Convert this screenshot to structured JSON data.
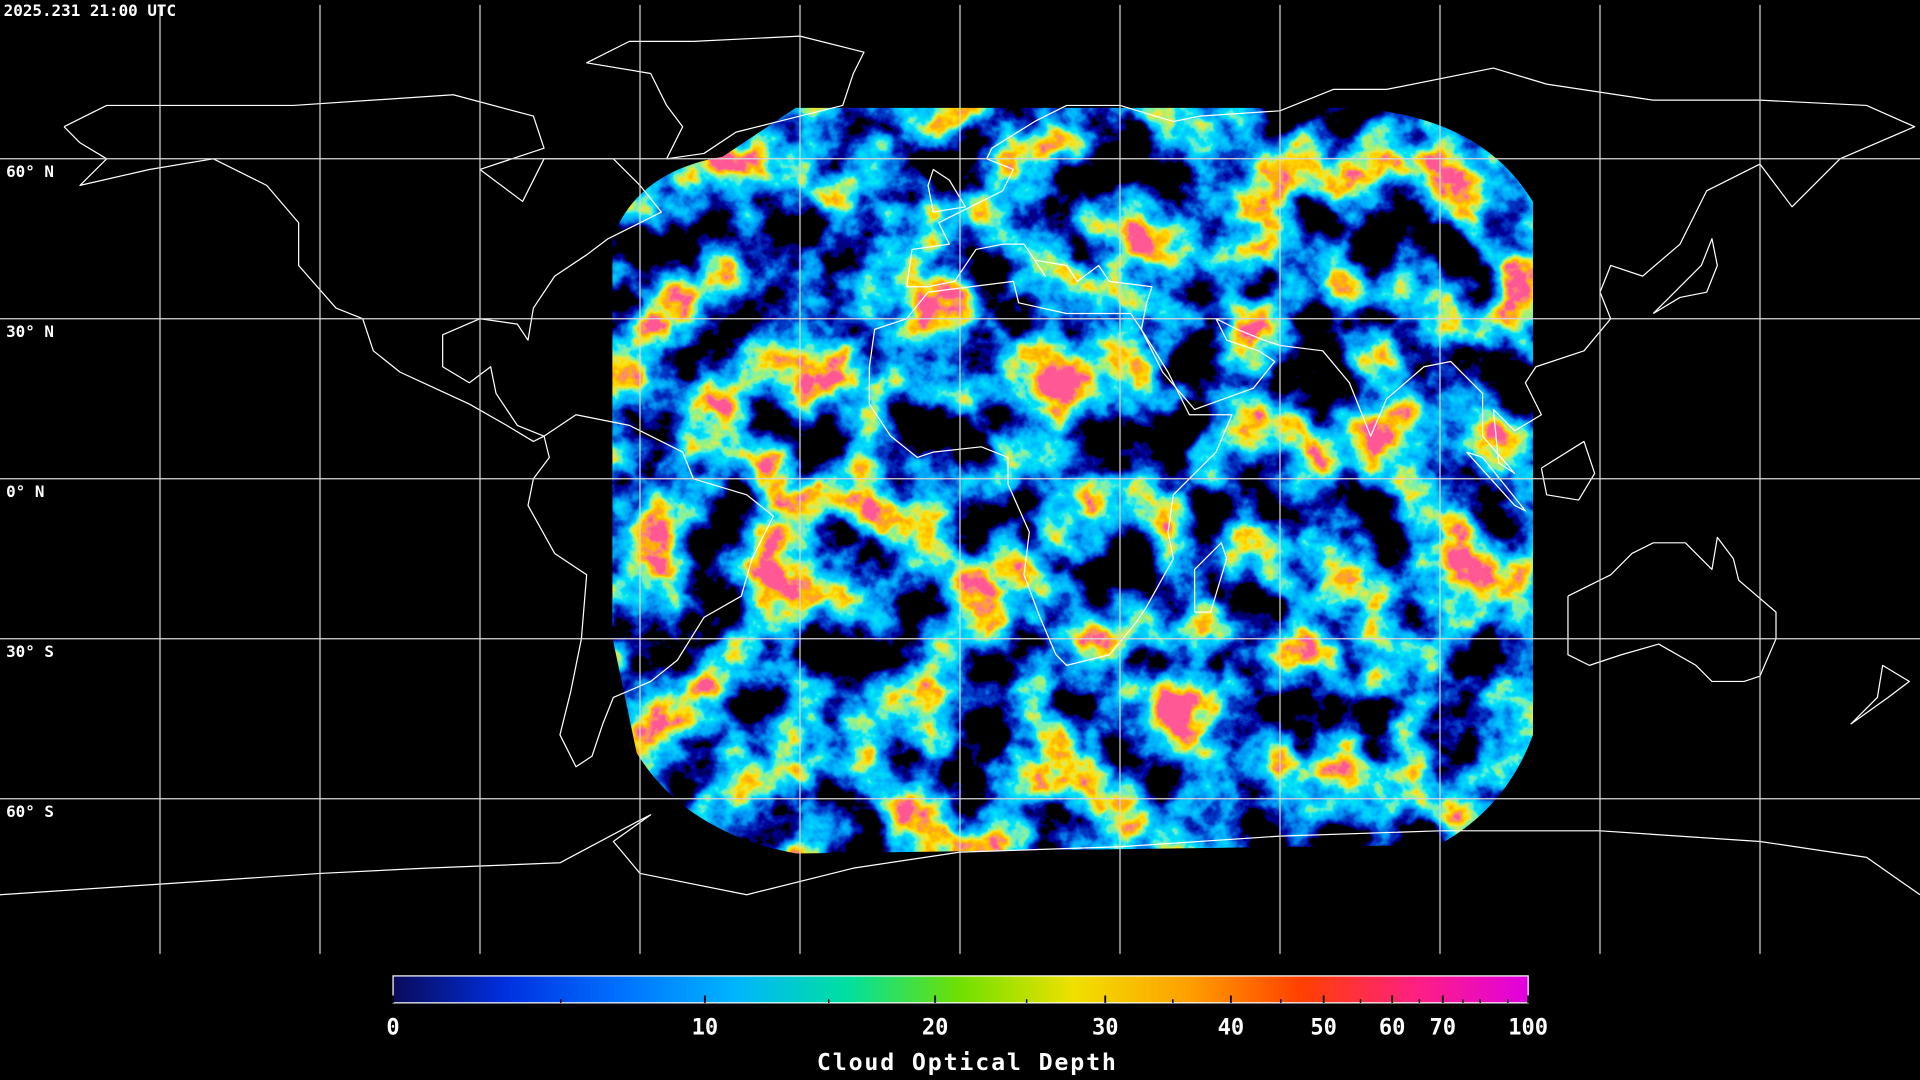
{
  "timestamp": "2025.231 21:00 UTC",
  "latitude_labels": [
    "60° N",
    "30° N",
    "0° N",
    "30° S",
    "60° S"
  ],
  "colorbar": {
    "title": "Cloud Optical Depth",
    "lim": [
      0,
      100
    ],
    "ticks": [
      0,
      10,
      20,
      30,
      40,
      50,
      60,
      70,
      100
    ],
    "minor_ticks": [
      5,
      15,
      25,
      35,
      45,
      55,
      65,
      75,
      80,
      90
    ],
    "colors": [
      "#0a0a5a",
      "#0030e0",
      "#0070ff",
      "#00b4ff",
      "#00e0a0",
      "#70e000",
      "#f0e000",
      "#ffa000",
      "#ff4000",
      "#ff2080",
      "#e000e0"
    ]
  }
}
